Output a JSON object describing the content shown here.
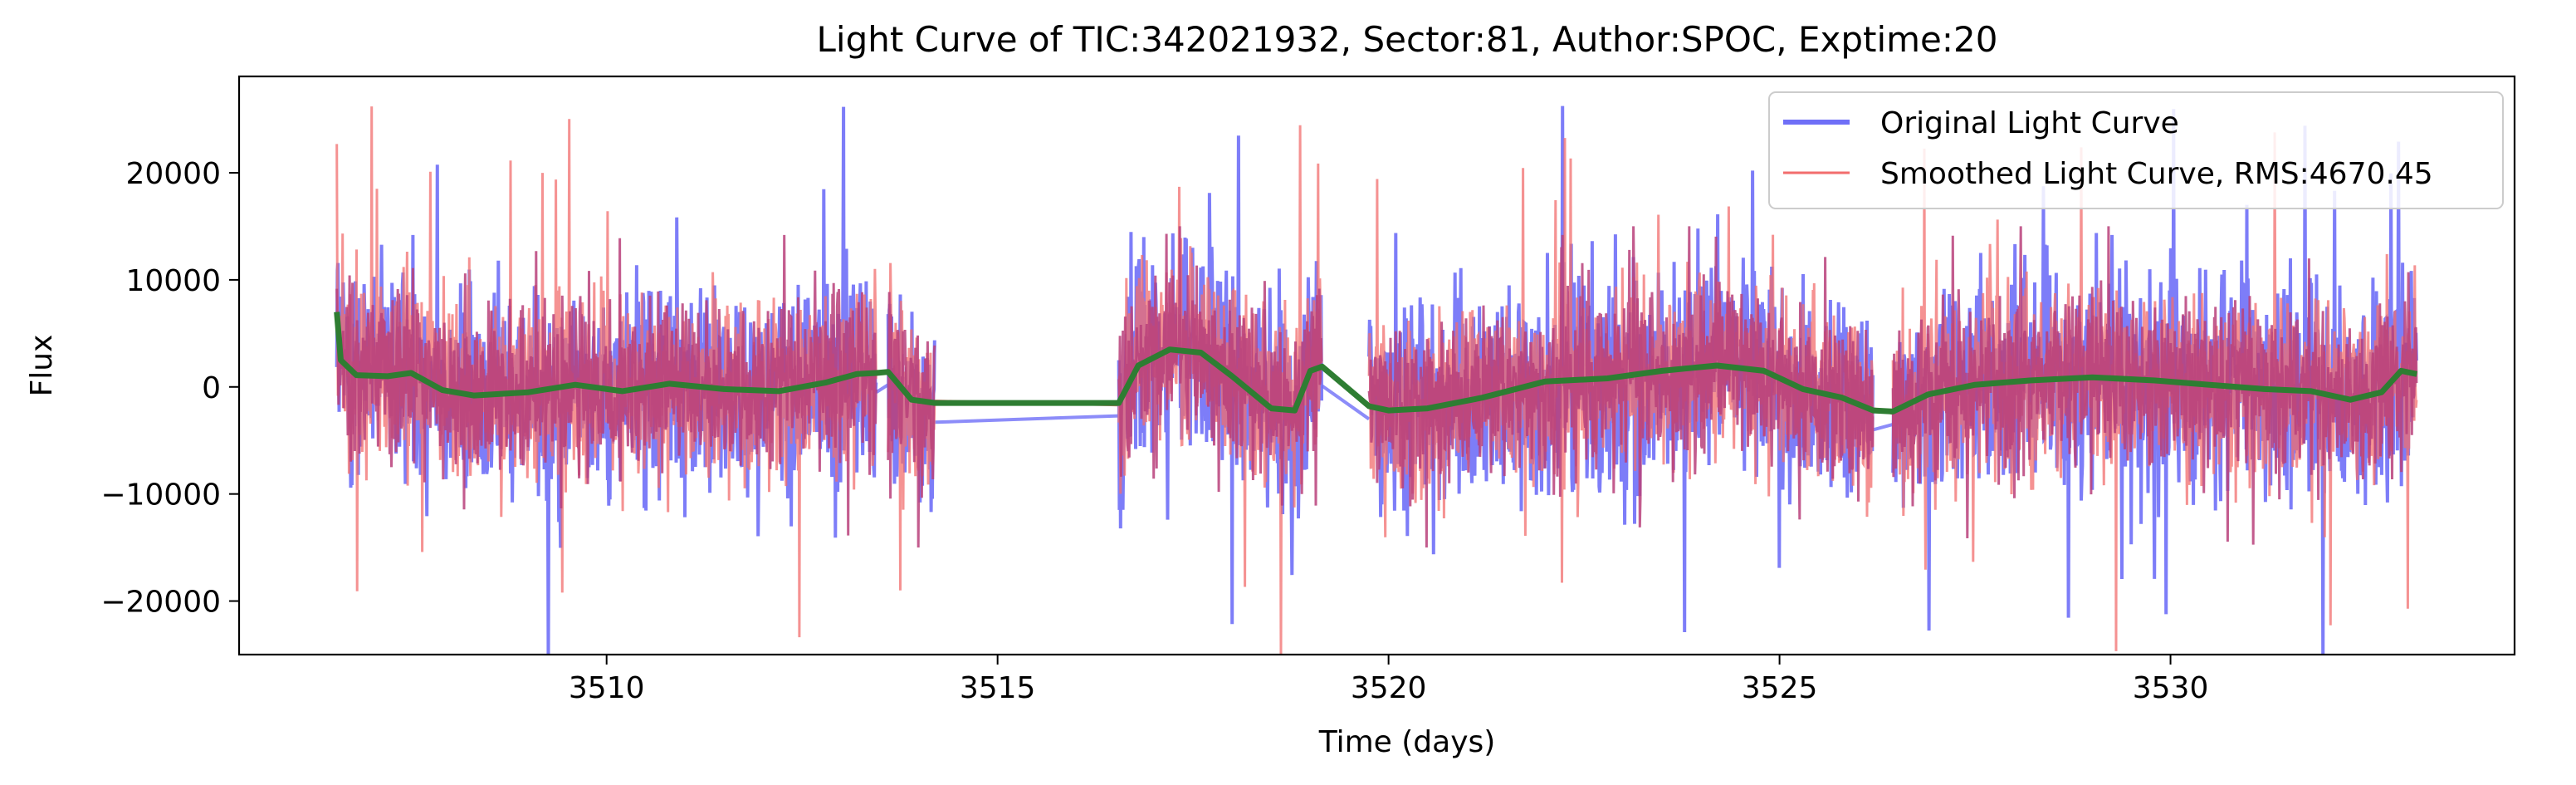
{
  "chart_data": {
    "type": "line",
    "title": "Light Curve of TIC:342021932, Sector:81, Author:SPOC, Exptime:20",
    "xlabel": "Time (days)",
    "ylabel": "Flux",
    "xlim": [
      3505.3,
      3534.4
    ],
    "ylim": [
      -25000,
      29000
    ],
    "x_ticks": [
      3510,
      3515,
      3520,
      3525,
      3530
    ],
    "x_tick_labels": [
      "3510",
      "3515",
      "3520",
      "3525",
      "3530"
    ],
    "y_ticks": [
      20000,
      10000,
      0,
      -10000,
      -20000
    ],
    "y_tick_labels": [
      "20000",
      "10000",
      "0",
      "−10000",
      "−20000"
    ],
    "grid": false,
    "legend_position": "top-right",
    "data_segments": [
      [
        3506.55,
        3513.45
      ],
      [
        3513.6,
        3514.2
      ],
      [
        3516.55,
        3519.15
      ],
      [
        3519.75,
        3526.2
      ],
      [
        3526.45,
        3533.15
      ]
    ],
    "series": [
      {
        "name": "Original Light Curve",
        "legend_label": "Original Light Curve",
        "color": "#6f6ff7",
        "style": "noisy flux, roughly ±12000 with spikes to ±27000",
        "noise_amplitude": 12000,
        "max_flux": 26700,
        "min_flux": -22500
      },
      {
        "name": "Smoothed Light Curve",
        "legend_label": "Smoothed Light Curve, RMS:4670.45",
        "rms": 4670.45,
        "color": "#f26d6d",
        "style": "noisy flux overlaying original"
      },
      {
        "name": "Trend",
        "color": "#2e7d32",
        "in_legend": false,
        "x": [
          3506.55,
          3506.6,
          3506.8,
          3507.2,
          3507.5,
          3507.9,
          3508.3,
          3509.0,
          3509.6,
          3510.2,
          3510.8,
          3511.5,
          3512.2,
          3512.8,
          3513.2,
          3513.45,
          3513.6,
          3513.9,
          3514.2,
          3516.55,
          3516.8,
          3517.2,
          3517.6,
          3518.0,
          3518.5,
          3518.8,
          3519.0,
          3519.15,
          3519.75,
          3520.0,
          3520.5,
          3521.2,
          3522.0,
          3522.8,
          3523.5,
          3524.2,
          3524.8,
          3525.3,
          3525.8,
          3526.2,
          3526.45,
          3526.9,
          3527.5,
          3528.2,
          3529.0,
          3529.8,
          3530.5,
          3531.2,
          3531.8,
          3532.3,
          3532.7,
          3532.95,
          3533.15
        ],
        "values": [
          7000,
          2500,
          1100,
          1000,
          1300,
          -300,
          -800,
          -500,
          200,
          -400,
          300,
          -200,
          -400,
          400,
          1200,
          1300,
          1400,
          -1200,
          -1500,
          -1500,
          2000,
          3500,
          3200,
          1000,
          -2000,
          -2200,
          1500,
          1900,
          -1800,
          -2200,
          -2000,
          -1000,
          500,
          800,
          1500,
          2000,
          1500,
          -200,
          -1000,
          -2200,
          -2300,
          -700,
          200,
          600,
          900,
          600,
          200,
          -200,
          -400,
          -1200,
          -500,
          1500,
          1200
        ]
      }
    ]
  }
}
